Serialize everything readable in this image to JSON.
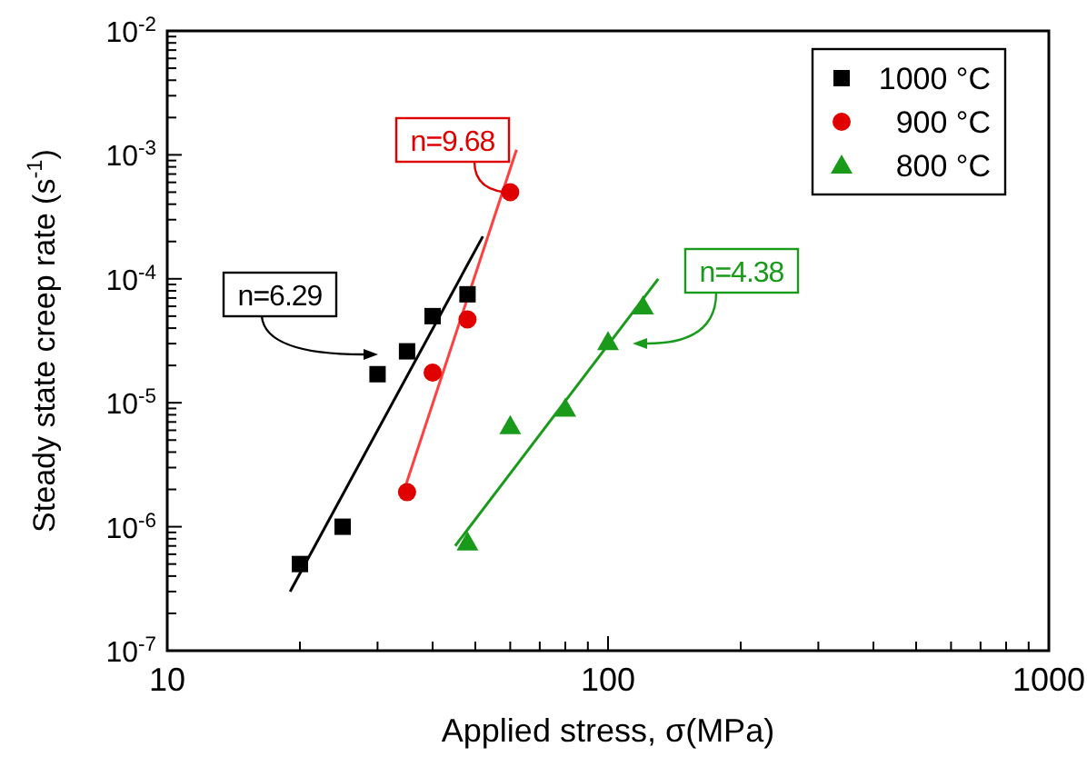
{
  "chart_data": {
    "type": "scatter",
    "xlabel": "Applied stress, σ(MPa)",
    "ylabel": "Steady state creep rate (s$^{-1}$)",
    "log": "xy",
    "grid": false,
    "legend": "top right",
    "xlim": [
      10,
      1000
    ],
    "ylim": [
      1e-07,
      0.01
    ],
    "xticks": [
      10,
      {
        "value": 20,
        "label": null
      },
      {
        "value": 30,
        "label": null
      },
      {
        "value": 40,
        "label": null
      },
      {
        "value": 50,
        "label": null
      },
      {
        "value": 60,
        "label": null
      },
      {
        "value": 70,
        "label": null
      },
      {
        "value": 80,
        "label": null
      },
      {
        "value": 90,
        "label": null
      },
      100,
      {
        "value": 200,
        "label": null
      },
      {
        "value": 300,
        "label": null
      },
      {
        "value": 400,
        "label": null
      },
      {
        "value": 500,
        "label": null
      },
      {
        "value": 600,
        "label": null
      },
      {
        "value": 700,
        "label": null
      },
      {
        "value": 800,
        "label": null
      },
      {
        "value": 900,
        "label": null
      },
      1000
    ],
    "yticks": [
      {
        "value": 1e-07,
        "label": "10$^{-7}$"
      },
      {
        "value": 2e-07,
        "label": null
      },
      {
        "value": 3e-07,
        "label": null
      },
      {
        "value": 4e-07,
        "label": null
      },
      {
        "value": 5e-07,
        "label": null
      },
      {
        "value": 6e-07,
        "label": null
      },
      {
        "value": 7e-07,
        "label": null
      },
      {
        "value": 8e-07,
        "label": null
      },
      {
        "value": 9e-07,
        "label": null
      },
      {
        "value": 1e-06,
        "label": "10$^{-6}$"
      },
      {
        "value": 2e-06,
        "label": null
      },
      {
        "value": 3e-06,
        "label": null
      },
      {
        "value": 4e-06,
        "label": null
      },
      {
        "value": 5e-06,
        "label": null
      },
      {
        "value": 6e-06,
        "label": null
      },
      {
        "value": 7e-06,
        "label": null
      },
      {
        "value": 8e-06,
        "label": null
      },
      {
        "value": 9e-06,
        "label": null
      },
      {
        "value": 1e-05,
        "label": "10$^{-5}$"
      },
      {
        "value": 2e-05,
        "label": null
      },
      {
        "value": 3e-05,
        "label": null
      },
      {
        "value": 4e-05,
        "label": null
      },
      {
        "value": 5e-05,
        "label": null
      },
      {
        "value": 6e-05,
        "label": null
      },
      {
        "value": 7e-05,
        "label": null
      },
      {
        "value": 8e-05,
        "label": null
      },
      {
        "value": 9e-05,
        "label": null
      },
      {
        "value": 0.0001,
        "label": "10$^{-4}$"
      },
      {
        "value": 0.0002,
        "label": null
      },
      {
        "value": 0.0003,
        "label": null
      },
      {
        "value": 0.0004,
        "label": null
      },
      {
        "value": 0.0005,
        "label": null
      },
      {
        "value": 0.0006,
        "label": null
      },
      {
        "value": 0.0007,
        "label": null
      },
      {
        "value": 0.0008,
        "label": null
      },
      {
        "value": 0.0009,
        "label": null
      },
      {
        "value": 0.001,
        "label": "10$^{-3}$"
      },
      {
        "value": 0.002,
        "label": null
      },
      {
        "value": 0.003,
        "label": null
      },
      {
        "value": 0.004,
        "label": null
      },
      {
        "value": 0.005,
        "label": null
      },
      {
        "value": 0.006,
        "label": null
      },
      {
        "value": 0.007,
        "label": null
      },
      {
        "value": 0.008,
        "label": null
      },
      {
        "value": 0.009,
        "label": null
      },
      {
        "value": 0.01,
        "label": "10$^{-2}$"
      }
    ],
    "series": [
      {
        "name": "1000 °C",
        "marker": "square",
        "color": "#000000",
        "x": [
          20,
          25,
          30,
          35,
          40,
          48
        ],
        "values": [
          5e-07,
          1e-06,
          1.7e-05,
          2.6e-05,
          5e-05,
          7.5e-05
        ]
      },
      {
        "name": "900 °C",
        "marker": "circle",
        "color": "#e00000",
        "x": [
          35,
          40,
          48,
          60
        ],
        "values": [
          1.9e-06,
          1.75e-05,
          4.7e-05,
          0.0005
        ]
      },
      {
        "name": "800 °C",
        "marker": "triangle",
        "color": "#1a9a1a",
        "x": [
          48,
          60,
          80,
          100,
          120
        ],
        "values": [
          7.5e-07,
          6.5e-06,
          9e-06,
          3.1e-05,
          6e-05
        ]
      },
      {
        "type": "line",
        "color": "#000000",
        "x": [
          19,
          52
        ],
        "values": [
          3e-07,
          0.00022
        ]
      },
      {
        "type": "line",
        "color": "#ff4040",
        "x": [
          34,
          62
        ],
        "values": [
          1.7e-06,
          0.0011
        ]
      },
      {
        "type": "line",
        "color": "#1a9a1a",
        "x": [
          45,
          130
        ],
        "values": [
          7e-07,
          0.0001
        ]
      }
    ],
    "annotations": [
      "n=6.29",
      "n=9.68",
      "n=4.38"
    ]
  }
}
